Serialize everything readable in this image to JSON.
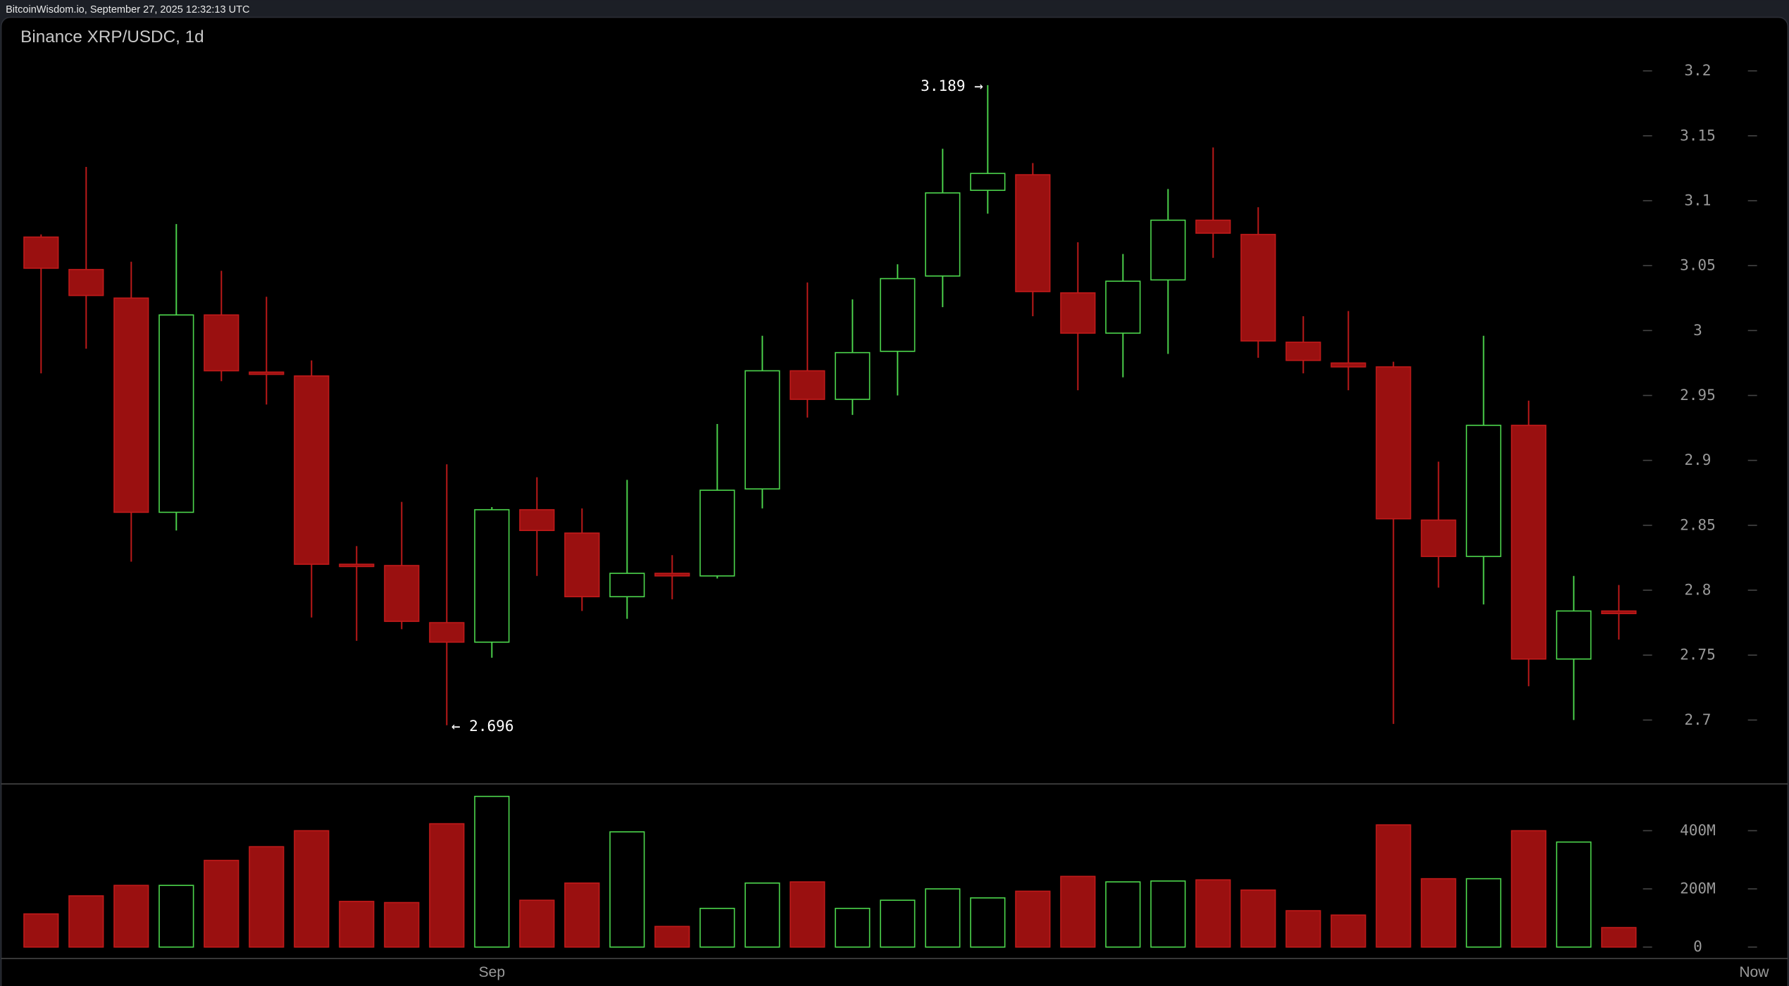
{
  "header": {
    "source": "BitcoinWisdom.io, September 27, 2025 12:32:13 UTC"
  },
  "chart_data": {
    "type": "candlestick",
    "title": "Binance XRP/USDC, 1d",
    "price_ylim": [
      2.65,
      3.24
    ],
    "price_ticks": [
      "3.2",
      "3.15",
      "3.1",
      "3.05",
      "3",
      "2.95",
      "2.9",
      "2.85",
      "2.8",
      "2.75",
      "2.7"
    ],
    "volume_ticks": [
      "400M",
      "200M",
      "0"
    ],
    "volume_tick_values": [
      400,
      200,
      0
    ],
    "volume_unit": "M",
    "x_labels": [
      {
        "label": "Sep",
        "index": 10
      },
      {
        "label": "Now",
        "index": 38
      }
    ],
    "annotations": {
      "high": {
        "text": "3.189 →",
        "value": 3.189,
        "index": 21
      },
      "low": {
        "text": "← 2.696",
        "value": 2.696,
        "index": 9
      }
    },
    "colors": {
      "up": "#4cd44c",
      "down_fill": "#9a1010",
      "down_stroke": "#c01a1a",
      "background": "#000000",
      "axis_text": "#9a9a9a"
    },
    "candles": [
      {
        "o": 3.072,
        "h": 3.074,
        "l": 2.967,
        "c": 3.048,
        "v": 114
      },
      {
        "o": 3.047,
        "h": 3.126,
        "l": 2.986,
        "c": 3.027,
        "v": 176
      },
      {
        "o": 3.025,
        "h": 3.053,
        "l": 2.822,
        "c": 2.86,
        "v": 212
      },
      {
        "o": 2.86,
        "h": 3.082,
        "l": 2.846,
        "c": 3.012,
        "v": 212
      },
      {
        "o": 3.012,
        "h": 3.046,
        "l": 2.961,
        "c": 2.969,
        "v": 298
      },
      {
        "o": 2.968,
        "h": 3.026,
        "l": 2.943,
        "c": 2.967,
        "v": 345
      },
      {
        "o": 2.965,
        "h": 2.977,
        "l": 2.779,
        "c": 2.82,
        "v": 400
      },
      {
        "o": 2.82,
        "h": 2.834,
        "l": 2.761,
        "c": 2.819,
        "v": 157
      },
      {
        "o": 2.819,
        "h": 2.868,
        "l": 2.77,
        "c": 2.776,
        "v": 153
      },
      {
        "o": 2.775,
        "h": 2.897,
        "l": 2.696,
        "c": 2.76,
        "v": 424
      },
      {
        "o": 2.76,
        "h": 2.864,
        "l": 2.748,
        "c": 2.862,
        "v": 518
      },
      {
        "o": 2.862,
        "h": 2.887,
        "l": 2.811,
        "c": 2.846,
        "v": 161
      },
      {
        "o": 2.844,
        "h": 2.863,
        "l": 2.784,
        "c": 2.795,
        "v": 220
      },
      {
        "o": 2.795,
        "h": 2.885,
        "l": 2.778,
        "c": 2.813,
        "v": 396
      },
      {
        "o": 2.813,
        "h": 2.827,
        "l": 2.793,
        "c": 2.811,
        "v": 71
      },
      {
        "o": 2.811,
        "h": 2.928,
        "l": 2.809,
        "c": 2.877,
        "v": 133
      },
      {
        "o": 2.878,
        "h": 2.996,
        "l": 2.863,
        "c": 2.969,
        "v": 220
      },
      {
        "o": 2.969,
        "h": 3.037,
        "l": 2.933,
        "c": 2.947,
        "v": 224
      },
      {
        "o": 2.947,
        "h": 3.024,
        "l": 2.935,
        "c": 2.983,
        "v": 133
      },
      {
        "o": 2.984,
        "h": 3.051,
        "l": 2.95,
        "c": 3.04,
        "v": 161
      },
      {
        "o": 3.042,
        "h": 3.14,
        "l": 3.018,
        "c": 3.106,
        "v": 200
      },
      {
        "o": 3.108,
        "h": 3.189,
        "l": 3.09,
        "c": 3.121,
        "v": 169
      },
      {
        "o": 3.12,
        "h": 3.129,
        "l": 3.011,
        "c": 3.03,
        "v": 192
      },
      {
        "o": 3.029,
        "h": 3.068,
        "l": 2.954,
        "c": 2.998,
        "v": 243
      },
      {
        "o": 2.998,
        "h": 3.059,
        "l": 2.964,
        "c": 3.038,
        "v": 224
      },
      {
        "o": 3.039,
        "h": 3.109,
        "l": 2.982,
        "c": 3.085,
        "v": 227
      },
      {
        "o": 3.085,
        "h": 3.141,
        "l": 3.056,
        "c": 3.075,
        "v": 231
      },
      {
        "o": 3.074,
        "h": 3.095,
        "l": 2.979,
        "c": 2.992,
        "v": 196
      },
      {
        "o": 2.991,
        "h": 3.011,
        "l": 2.967,
        "c": 2.977,
        "v": 125
      },
      {
        "o": 2.975,
        "h": 3.015,
        "l": 2.954,
        "c": 2.972,
        "v": 110
      },
      {
        "o": 2.972,
        "h": 2.976,
        "l": 2.697,
        "c": 2.855,
        "v": 420
      },
      {
        "o": 2.854,
        "h": 2.899,
        "l": 2.802,
        "c": 2.826,
        "v": 235
      },
      {
        "o": 2.826,
        "h": 2.996,
        "l": 2.789,
        "c": 2.927,
        "v": 235
      },
      {
        "o": 2.927,
        "h": 2.946,
        "l": 2.726,
        "c": 2.747,
        "v": 400
      },
      {
        "o": 2.747,
        "h": 2.811,
        "l": 2.7,
        "c": 2.784,
        "v": 361
      },
      {
        "o": 2.784,
        "h": 2.804,
        "l": 2.762,
        "c": 2.782,
        "v": 67
      }
    ]
  }
}
